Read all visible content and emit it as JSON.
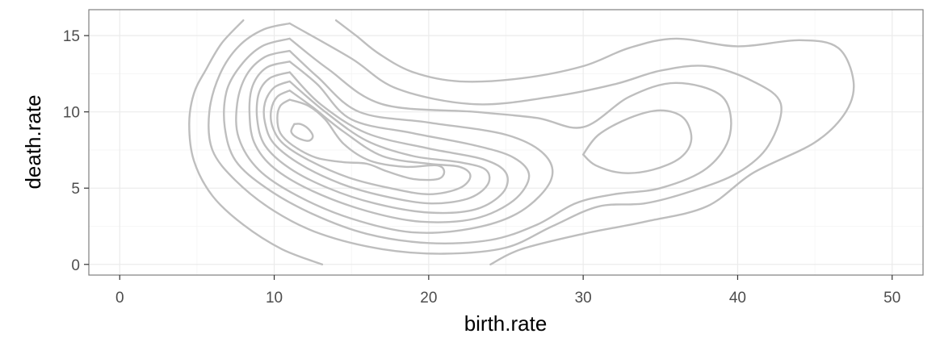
{
  "chart_data": {
    "type": "contour",
    "title": "",
    "xlabel": "birth.rate",
    "ylabel": "death.rate",
    "xlim": [
      -2,
      52
    ],
    "ylim": [
      -0.7,
      16.7
    ],
    "x_ticks": [
      0,
      10,
      20,
      30,
      40,
      50
    ],
    "y_ticks": [
      0,
      5,
      10,
      15
    ],
    "x_tick_labels": [
      "0",
      "10",
      "20",
      "30",
      "40",
      "50"
    ],
    "y_tick_labels": [
      "0",
      "5",
      "10",
      "15"
    ],
    "grid": true,
    "legend": "none",
    "line_color": "#bebebe",
    "contours": [
      {
        "level": 1,
        "points": [
          [
            13.1,
            0.0
          ],
          [
            10.5,
            1.0
          ],
          [
            8.0,
            2.6
          ],
          [
            6.0,
            4.5
          ],
          [
            4.8,
            6.8
          ],
          [
            4.5,
            9.2
          ],
          [
            4.8,
            11.2
          ],
          [
            5.6,
            12.8
          ],
          [
            6.6,
            14.5
          ],
          [
            8.0,
            16.0
          ]
        ]
      },
      {
        "level": 2,
        "points": [
          [
            14.0,
            16.0
          ],
          [
            15.3,
            15.0
          ],
          [
            16.8,
            13.8
          ],
          [
            19.0,
            12.6
          ],
          [
            22.0,
            12.0
          ],
          [
            26.0,
            12.2
          ],
          [
            30.0,
            13.0
          ],
          [
            33.0,
            14.2
          ],
          [
            36.0,
            14.8
          ],
          [
            40.0,
            14.3
          ],
          [
            44.0,
            14.7
          ],
          [
            46.5,
            14.2
          ],
          [
            47.5,
            12.0
          ],
          [
            47.0,
            10.0
          ],
          [
            45.0,
            8.0
          ],
          [
            41.0,
            6.0
          ],
          [
            38.0,
            3.8
          ],
          [
            34.0,
            2.8
          ],
          [
            30.0,
            2.0
          ],
          [
            26.0,
            1.0
          ],
          [
            24.0,
            0.0
          ]
        ]
      },
      {
        "level": 3,
        "points": [
          [
            11.0,
            15.8
          ],
          [
            9.3,
            15.4
          ],
          [
            7.7,
            14.3
          ],
          [
            6.5,
            12.5
          ],
          [
            5.8,
            10.0
          ],
          [
            6.0,
            7.5
          ],
          [
            7.5,
            5.5
          ],
          [
            10.0,
            3.5
          ],
          [
            13.0,
            2.0
          ],
          [
            17.0,
            1.0
          ],
          [
            21.0,
            0.7
          ],
          [
            25.0,
            1.1
          ],
          [
            28.0,
            2.5
          ],
          [
            31.0,
            3.8
          ],
          [
            34.0,
            4.0
          ],
          [
            37.0,
            4.8
          ],
          [
            40.0,
            6.0
          ],
          [
            42.0,
            7.8
          ],
          [
            42.8,
            10.5
          ],
          [
            41.0,
            12.0
          ],
          [
            38.0,
            13.0
          ],
          [
            35.0,
            12.7
          ],
          [
            32.0,
            11.8
          ],
          [
            28.0,
            11.0
          ],
          [
            23.0,
            10.5
          ],
          [
            18.0,
            11.5
          ],
          [
            15.0,
            13.5
          ],
          [
            11.0,
            15.8
          ]
        ]
      },
      {
        "level": 4,
        "points": [
          [
            11.0,
            14.8
          ],
          [
            9.2,
            14.3
          ],
          [
            7.8,
            13.0
          ],
          [
            6.9,
            11.3
          ],
          [
            6.8,
            9.0
          ],
          [
            7.5,
            6.8
          ],
          [
            9.5,
            5.0
          ],
          [
            12.5,
            3.3
          ],
          [
            16.0,
            2.0
          ],
          [
            20.0,
            1.4
          ],
          [
            24.0,
            1.6
          ],
          [
            27.0,
            2.6
          ],
          [
            29.5,
            4.0
          ],
          [
            32.0,
            4.6
          ],
          [
            35.0,
            5.0
          ],
          [
            38.0,
            6.3
          ],
          [
            39.5,
            8.5
          ],
          [
            39.0,
            11.0
          ],
          [
            36.0,
            11.9
          ],
          [
            33.0,
            11.0
          ],
          [
            30.0,
            9.0
          ],
          [
            27.0,
            9.6
          ],
          [
            23.0,
            10.0
          ],
          [
            17.0,
            10.5
          ],
          [
            13.5,
            12.8
          ],
          [
            11.0,
            14.8
          ]
        ]
      },
      {
        "level": 5,
        "points": [
          [
            11.0,
            14.0
          ],
          [
            9.4,
            13.6
          ],
          [
            8.2,
            12.4
          ],
          [
            7.6,
            10.5
          ],
          [
            7.7,
            8.3
          ],
          [
            9.0,
            6.2
          ],
          [
            11.5,
            4.5
          ],
          [
            15.0,
            3.0
          ],
          [
            19.0,
            2.1
          ],
          [
            23.0,
            2.4
          ],
          [
            26.0,
            3.5
          ],
          [
            27.9,
            5.5
          ],
          [
            27.5,
            7.2
          ],
          [
            25.0,
            8.5
          ],
          [
            20.0,
            9.3
          ],
          [
            15.5,
            10.0
          ],
          [
            12.8,
            12.3
          ],
          [
            11.0,
            14.0
          ]
        ]
      },
      {
        "level": 6,
        "points": [
          [
            11.0,
            13.3
          ],
          [
            9.5,
            12.9
          ],
          [
            8.6,
            11.7
          ],
          [
            8.4,
            10.0
          ],
          [
            8.7,
            8.0
          ],
          [
            10.0,
            6.3
          ],
          [
            12.5,
            4.8
          ],
          [
            16.0,
            3.5
          ],
          [
            19.5,
            2.8
          ],
          [
            23.0,
            3.0
          ],
          [
            25.5,
            4.2
          ],
          [
            26.5,
            5.8
          ],
          [
            25.5,
            7.0
          ],
          [
            23.0,
            7.8
          ],
          [
            19.0,
            8.6
          ],
          [
            15.0,
            9.5
          ],
          [
            12.8,
            11.8
          ],
          [
            11.0,
            13.3
          ]
        ]
      },
      {
        "level": 7,
        "points": [
          [
            11.0,
            12.6
          ],
          [
            9.7,
            12.2
          ],
          [
            9.0,
            11.2
          ],
          [
            8.9,
            9.5
          ],
          [
            9.4,
            7.8
          ],
          [
            11.0,
            6.3
          ],
          [
            13.5,
            5.0
          ],
          [
            16.5,
            4.0
          ],
          [
            20.0,
            3.4
          ],
          [
            23.0,
            3.6
          ],
          [
            24.8,
            4.7
          ],
          [
            25.0,
            6.0
          ],
          [
            23.5,
            6.9
          ],
          [
            20.0,
            7.6
          ],
          [
            16.0,
            8.6
          ],
          [
            13.0,
            10.5
          ],
          [
            11.0,
            12.6
          ]
        ]
      },
      {
        "level": 8,
        "points": [
          [
            11.0,
            12.0
          ],
          [
            10.0,
            11.6
          ],
          [
            9.4,
            10.6
          ],
          [
            9.4,
            9.3
          ],
          [
            10.0,
            7.9
          ],
          [
            11.8,
            6.5
          ],
          [
            14.3,
            5.3
          ],
          [
            17.0,
            4.5
          ],
          [
            20.0,
            4.0
          ],
          [
            22.5,
            4.3
          ],
          [
            23.8,
            5.2
          ],
          [
            23.7,
            6.2
          ],
          [
            22.0,
            6.7
          ],
          [
            19.0,
            7.1
          ],
          [
            16.0,
            8.1
          ],
          [
            13.3,
            10.0
          ],
          [
            11.0,
            12.0
          ]
        ]
      },
      {
        "level": 9,
        "points": [
          [
            11.0,
            11.4
          ],
          [
            10.2,
            11.0
          ],
          [
            9.8,
            10.1
          ],
          [
            9.9,
            9.0
          ],
          [
            10.6,
            7.9
          ],
          [
            12.3,
            6.8
          ],
          [
            14.8,
            5.7
          ],
          [
            17.5,
            5.0
          ],
          [
            20.0,
            4.6
          ],
          [
            22.0,
            5.0
          ],
          [
            22.7,
            5.8
          ],
          [
            22.0,
            6.4
          ],
          [
            20.0,
            6.6
          ],
          [
            17.0,
            7.1
          ],
          [
            14.5,
            8.7
          ],
          [
            12.5,
            10.3
          ],
          [
            11.0,
            11.4
          ]
        ]
      },
      {
        "level": 10,
        "points": [
          [
            11.0,
            10.8
          ],
          [
            10.4,
            10.4
          ],
          [
            10.2,
            9.6
          ],
          [
            10.4,
            8.6
          ],
          [
            11.2,
            7.8
          ],
          [
            12.7,
            7.0
          ],
          [
            14.5,
            6.7
          ],
          [
            16.0,
            6.6
          ],
          [
            17.3,
            6.1
          ],
          [
            19.0,
            5.6
          ],
          [
            20.6,
            5.6
          ],
          [
            21.0,
            6.1
          ],
          [
            20.5,
            6.5
          ],
          [
            18.5,
            6.4
          ],
          [
            16.2,
            6.8
          ],
          [
            14.5,
            7.9
          ],
          [
            13.3,
            9.5
          ],
          [
            12.2,
            10.4
          ],
          [
            11.0,
            10.8
          ]
        ]
      },
      {
        "level": 11,
        "points": [
          [
            11.3,
            9.2
          ],
          [
            11.1,
            8.7
          ],
          [
            11.5,
            8.3
          ],
          [
            12.2,
            8.1
          ],
          [
            12.5,
            8.4
          ],
          [
            12.2,
            8.9
          ],
          [
            11.7,
            9.2
          ],
          [
            11.3,
            9.2
          ]
        ]
      },
      {
        "level": 12,
        "points": [
          [
            30.0,
            7.2
          ],
          [
            31.0,
            8.5
          ],
          [
            33.0,
            9.6
          ],
          [
            35.0,
            10.1
          ],
          [
            36.5,
            9.6
          ],
          [
            37.0,
            8.2
          ],
          [
            36.3,
            7.0
          ],
          [
            34.5,
            6.2
          ],
          [
            32.5,
            6.0
          ],
          [
            30.8,
            6.5
          ],
          [
            30.0,
            7.2
          ]
        ]
      }
    ]
  }
}
